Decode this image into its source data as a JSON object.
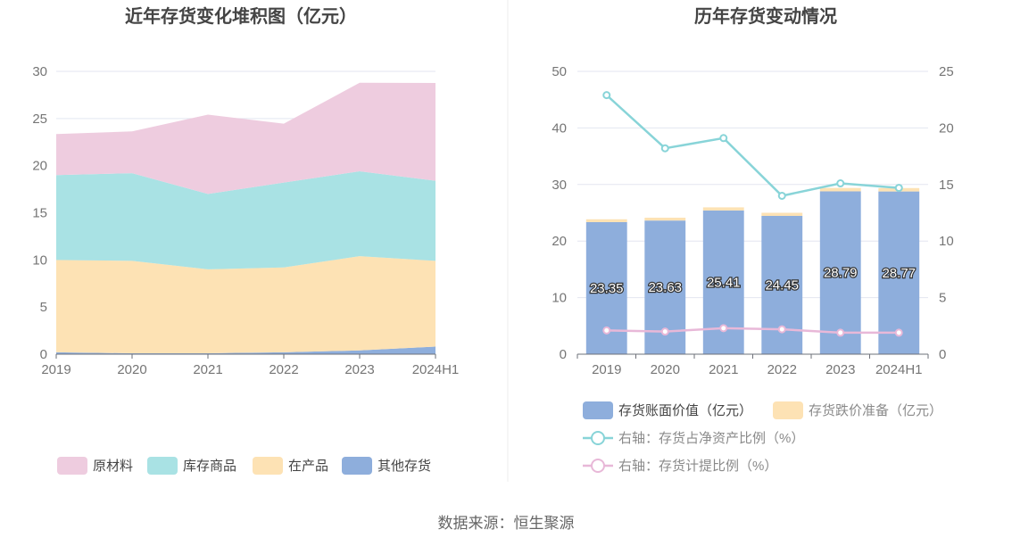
{
  "chart_data": [
    {
      "type": "area",
      "stacked": true,
      "title": "近年存货变化堆积图（亿元）",
      "categories": [
        "2019",
        "2020",
        "2021",
        "2022",
        "2023",
        "2024H1"
      ],
      "ylim": [
        0,
        30
      ],
      "yticks": [
        0,
        5,
        10,
        15,
        20,
        25,
        30
      ],
      "grid": true,
      "legend_position": "bottom",
      "series": [
        {
          "name": "其他存货",
          "color": "#8eaedc",
          "values": [
            0.2,
            0.1,
            0.1,
            0.2,
            0.4,
            0.8
          ]
        },
        {
          "name": "在产品",
          "color": "#fde2b4",
          "values": [
            9.8,
            9.8,
            8.9,
            9.0,
            10.0,
            9.1
          ]
        },
        {
          "name": "库存商品",
          "color": "#a9e2e4",
          "values": [
            9.0,
            9.3,
            8.0,
            9.0,
            9.0,
            8.5
          ]
        },
        {
          "name": "原材料",
          "color": "#eeccdf",
          "values": [
            4.35,
            4.43,
            8.41,
            6.25,
            9.39,
            10.37
          ]
        }
      ],
      "legend_order": [
        "原材料",
        "库存商品",
        "在产品",
        "其他存货"
      ]
    },
    {
      "type": "bar",
      "stacked": true,
      "title": "历年存货变动情况",
      "categories": [
        "2019",
        "2020",
        "2021",
        "2022",
        "2023",
        "2024H1"
      ],
      "ylim": [
        0,
        50
      ],
      "yticks": [
        0,
        10,
        20,
        30,
        40,
        50
      ],
      "y2lim": [
        0,
        25
      ],
      "y2ticks": [
        0,
        5,
        10,
        15,
        20,
        25
      ],
      "grid": true,
      "legend_position": "bottom",
      "series": [
        {
          "name": "存货账面价值（亿元）",
          "kind": "bar",
          "axis": "left",
          "color": "#8eaedc",
          "values": [
            23.35,
            23.63,
            25.41,
            24.45,
            28.79,
            28.77
          ],
          "data_labels": [
            "23.35",
            "23.63",
            "25.41",
            "24.45",
            "28.79",
            "28.77"
          ]
        },
        {
          "name": "存货跌价准备（亿元）",
          "kind": "bar",
          "axis": "left",
          "color": "#fde2b4",
          "values": [
            0.5,
            0.5,
            0.55,
            0.55,
            0.6,
            0.6
          ]
        },
        {
          "name": "右轴：存货占净资产比例（%）",
          "kind": "line",
          "axis": "right",
          "color": "#88d4d8",
          "values": [
            22.9,
            18.2,
            19.1,
            14.0,
            15.1,
            14.7
          ]
        },
        {
          "name": "右轴：存货计提比例（%）",
          "kind": "line",
          "axis": "right",
          "color": "#e8b8d8",
          "values": [
            2.1,
            2.0,
            2.3,
            2.2,
            1.9,
            1.9
          ]
        }
      ]
    }
  ],
  "footer": {
    "source": "数据来源：恒生聚源"
  }
}
